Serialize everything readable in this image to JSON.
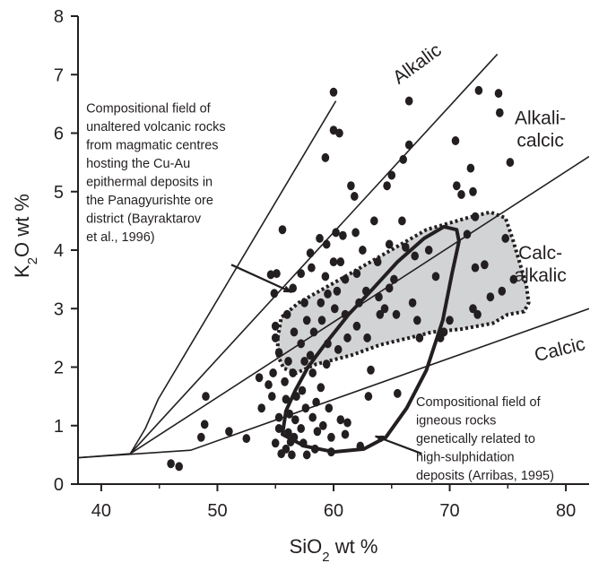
{
  "chart_data": {
    "type": "scatter",
    "xlabel": "SiO2 wt %",
    "ylabel": "K2O wt %",
    "xlabel_parts": {
      "base": "SiO",
      "sub": "2",
      "rest": " wt %"
    },
    "ylabel_parts": {
      "base": "K",
      "sub": "2",
      "rest": "O wt %"
    },
    "xlim": [
      38,
      82
    ],
    "ylim": [
      0,
      8
    ],
    "xticks": [
      40,
      50,
      60,
      70,
      80
    ],
    "yticks": [
      0,
      1,
      2,
      3,
      4,
      5,
      6,
      7,
      8
    ],
    "grid": false,
    "colors": {
      "points": "#231f20",
      "field_fill": "#d2d3d5",
      "lines": "#231f20"
    },
    "boundaries": [
      {
        "name": "Alkalic",
        "points": [
          [
            38,
            0.45
          ],
          [
            42.5,
            0.52
          ],
          [
            43.8,
            0.95
          ],
          [
            44.9,
            1.45
          ],
          [
            60.2,
            6.55
          ]
        ]
      },
      {
        "name": "Alkali-calcic",
        "points": [
          [
            42.5,
            0.52
          ],
          [
            74.1,
            7.35
          ]
        ]
      },
      {
        "name": "Calc-alkalic",
        "points": [
          [
            42.5,
            0.52
          ],
          [
            82,
            5.6
          ]
        ]
      },
      {
        "name": "Calcic",
        "points": [
          [
            38,
            0.45
          ],
          [
            47.7,
            0.58
          ],
          [
            82,
            3.0
          ]
        ]
      }
    ],
    "series_labels": [
      {
        "lines": [
          "Alkalic"
        ],
        "x": 67.5,
        "y": 7.1,
        "rotate": -36
      },
      {
        "lines": [
          "Alkali-",
          "calcic"
        ],
        "x": 77.8,
        "y": 6.15
      },
      {
        "lines": [
          "Calc-",
          "alkalic"
        ],
        "x": 77.8,
        "y": 3.85
      },
      {
        "lines": [
          "Calcic"
        ],
        "x": 79.6,
        "y": 2.2,
        "rotate": -14
      }
    ],
    "fields": [
      {
        "name": "shaded-field",
        "style": "dotted",
        "points": [
          [
            55.2,
            2.5
          ],
          [
            55.5,
            2.85
          ],
          [
            57,
            3.1
          ],
          [
            61,
            3.55
          ],
          [
            64.5,
            3.95
          ],
          [
            68,
            4.35
          ],
          [
            71.5,
            4.55
          ],
          [
            73.5,
            4.65
          ],
          [
            74.8,
            4.55
          ],
          [
            75.4,
            4.2
          ],
          [
            76,
            3.8
          ],
          [
            76.6,
            3.4
          ],
          [
            76.8,
            3.1
          ],
          [
            76.4,
            2.95
          ],
          [
            75,
            2.9
          ],
          [
            73.7,
            2.75
          ],
          [
            71,
            2.65
          ],
          [
            68.5,
            2.6
          ],
          [
            66.5,
            2.5
          ],
          [
            64,
            2.38
          ],
          [
            61.5,
            2.2
          ],
          [
            58.5,
            2.05
          ],
          [
            56.8,
            1.9
          ],
          [
            55.7,
            1.98
          ],
          [
            55.2,
            2.2
          ]
        ]
      },
      {
        "name": "solid-field",
        "style": "solid",
        "points": [
          [
            55.6,
            0.85
          ],
          [
            57.5,
            0.65
          ],
          [
            60,
            0.55
          ],
          [
            62.6,
            0.6
          ],
          [
            64.5,
            0.8
          ],
          [
            66.3,
            1.3
          ],
          [
            68,
            1.95
          ],
          [
            69.4,
            2.8
          ],
          [
            70.2,
            3.6
          ],
          [
            70.8,
            4.15
          ],
          [
            70.6,
            4.35
          ],
          [
            69.5,
            4.4
          ],
          [
            67.8,
            4.2
          ],
          [
            65.5,
            3.8
          ],
          [
            63.2,
            3.3
          ],
          [
            61.3,
            2.9
          ],
          [
            59.3,
            2.4
          ],
          [
            57.8,
            2.0
          ],
          [
            56.7,
            1.6
          ],
          [
            55.9,
            1.25
          ]
        ]
      }
    ],
    "annotations": [
      {
        "lines": [
          "Compositional field of",
          "unaltered volcanic rocks",
          "from magmatic centres",
          "hosting the Cu-Au",
          "epithermal deposits in",
          "the Panagyurishte ore",
          "district (Bayraktarov",
          "et al., 1996)"
        ],
        "x": 38.7,
        "y": 6.35,
        "arrow_from": [
          51.2,
          3.75
        ],
        "arrow_to": [
          56.4,
          3.28
        ]
      },
      {
        "lines": [
          "Compositional field of",
          "igneous rocks",
          "genetically related to",
          "high-sulphidation",
          "deposits (Arribas, 1995)"
        ],
        "x": 67.1,
        "y": 1.33,
        "arrow_from": [
          67.6,
          0.52
        ],
        "arrow_to": [
          63.6,
          0.82
        ]
      }
    ],
    "points": [
      [
        46.0,
        0.35
      ],
      [
        46.7,
        0.3
      ],
      [
        48.6,
        0.8
      ],
      [
        48.9,
        1.02
      ],
      [
        49.0,
        1.5
      ],
      [
        51.0,
        0.9
      ],
      [
        52.5,
        0.78
      ],
      [
        53.6,
        1.82
      ],
      [
        53.8,
        1.3
      ],
      [
        54.4,
        1.7
      ],
      [
        54.7,
        1.5
      ],
      [
        54.6,
        3.58
      ],
      [
        54.9,
        3.26
      ],
      [
        55.0,
        2.7
      ],
      [
        55.0,
        2.5
      ],
      [
        54.8,
        1.9
      ],
      [
        55.0,
        0.7
      ],
      [
        55.3,
        0.95
      ],
      [
        55.6,
        4.35
      ],
      [
        55.1,
        3.6
      ],
      [
        55.3,
        2.25
      ],
      [
        55.3,
        1.14
      ],
      [
        55.5,
        0.52
      ],
      [
        55.9,
        0.6
      ],
      [
        56.0,
        2.9
      ],
      [
        56.1,
        2.1
      ],
      [
        55.8,
        1.75
      ],
      [
        55.9,
        1.45
      ],
      [
        56.2,
        1.2
      ],
      [
        56.1,
        0.88
      ],
      [
        56.3,
        0.72
      ],
      [
        56.4,
        0.5
      ],
      [
        56.5,
        3.35
      ],
      [
        56.6,
        2.6
      ],
      [
        56.5,
        1.9
      ],
      [
        56.8,
        1.5
      ],
      [
        56.7,
        1.1
      ],
      [
        56.6,
        0.8
      ],
      [
        57.2,
        3.6
      ],
      [
        57.5,
        3.1
      ],
      [
        57.7,
        2.8
      ],
      [
        57.2,
        2.4
      ],
      [
        57.5,
        2.1
      ],
      [
        57.3,
        1.6
      ],
      [
        57.6,
        1.3
      ],
      [
        57.2,
        0.95
      ],
      [
        57.4,
        0.7
      ],
      [
        57.7,
        0.5
      ],
      [
        58.0,
        3.95
      ],
      [
        58.1,
        3.7
      ],
      [
        58.3,
        2.6
      ],
      [
        58.0,
        2.2
      ],
      [
        58.2,
        1.9
      ],
      [
        58.5,
        1.4
      ],
      [
        58.2,
        1.14
      ],
      [
        58.6,
        0.9
      ],
      [
        58.4,
        0.6
      ],
      [
        58.8,
        4.2
      ],
      [
        58.9,
        3.1
      ],
      [
        59.0,
        2.8
      ],
      [
        58.9,
        1.65
      ],
      [
        59.1,
        1.0
      ],
      [
        59.3,
        5.58
      ],
      [
        59.4,
        4.1
      ],
      [
        59.3,
        3.55
      ],
      [
        59.5,
        3.25
      ],
      [
        59.5,
        2.4
      ],
      [
        59.4,
        2.05
      ],
      [
        59.6,
        1.3
      ],
      [
        59.8,
        0.8
      ],
      [
        59.8,
        0.55
      ],
      [
        60.0,
        6.7
      ],
      [
        60.0,
        6.05
      ],
      [
        60.2,
        4.3
      ],
      [
        60.0,
        3.8
      ],
      [
        60.3,
        3.3
      ],
      [
        60.1,
        3.0
      ],
      [
        60.4,
        2.3
      ],
      [
        60.6,
        1.1
      ],
      [
        60.5,
        6.0
      ],
      [
        60.8,
        4.25
      ],
      [
        60.6,
        3.8
      ],
      [
        61.0,
        3.5
      ],
      [
        61.0,
        2.9
      ],
      [
        61.2,
        2.5
      ],
      [
        61.0,
        0.85
      ],
      [
        61.2,
        1.05
      ],
      [
        61.5,
        5.1
      ],
      [
        61.8,
        4.92
      ],
      [
        61.9,
        4.3
      ],
      [
        62.0,
        3.6
      ],
      [
        62.2,
        3.1
      ],
      [
        62.0,
        2.7
      ],
      [
        62.3,
        0.65
      ],
      [
        62.5,
        4.0
      ],
      [
        62.8,
        3.3
      ],
      [
        62.9,
        2.5
      ],
      [
        63.0,
        1.5
      ],
      [
        63.2,
        1.95
      ],
      [
        63.5,
        4.5
      ],
      [
        63.8,
        3.8
      ],
      [
        63.9,
        3.2
      ],
      [
        64.0,
        2.9
      ],
      [
        64.4,
        3.0
      ],
      [
        64.6,
        5.1
      ],
      [
        64.8,
        4.1
      ],
      [
        64.8,
        3.35
      ],
      [
        65.0,
        5.28
      ],
      [
        65.2,
        3.5
      ],
      [
        65.4,
        2.9
      ],
      [
        65.5,
        1.55
      ],
      [
        65.9,
        4.5
      ],
      [
        66.2,
        4.05
      ],
      [
        66.0,
        5.55
      ],
      [
        66.5,
        5.8
      ],
      [
        66.5,
        6.55
      ],
      [
        66.8,
        3.1
      ],
      [
        67.0,
        3.9
      ],
      [
        67.2,
        2.8
      ],
      [
        67.4,
        2.5
      ],
      [
        68.2,
        4.0
      ],
      [
        68.8,
        3.55
      ],
      [
        69.2,
        2.5
      ],
      [
        69.5,
        2.6
      ],
      [
        70.0,
        2.8
      ],
      [
        70.6,
        5.1
      ],
      [
        70.5,
        5.87
      ],
      [
        71.0,
        4.95
      ],
      [
        71.5,
        4.27
      ],
      [
        72.0,
        3.0
      ],
      [
        72.4,
        2.9
      ],
      [
        72.2,
        3.7
      ],
      [
        72.2,
        4.57
      ],
      [
        72.0,
        5.0
      ],
      [
        71.8,
        5.4
      ],
      [
        73.0,
        3.75
      ],
      [
        73.5,
        3.2
      ],
      [
        72.5,
        6.73
      ],
      [
        74.2,
        6.68
      ],
      [
        74.3,
        6.35
      ],
      [
        74.5,
        3.3
      ],
      [
        74.8,
        4.2
      ],
      [
        75.2,
        5.5
      ],
      [
        75.5,
        3.5
      ]
    ]
  }
}
